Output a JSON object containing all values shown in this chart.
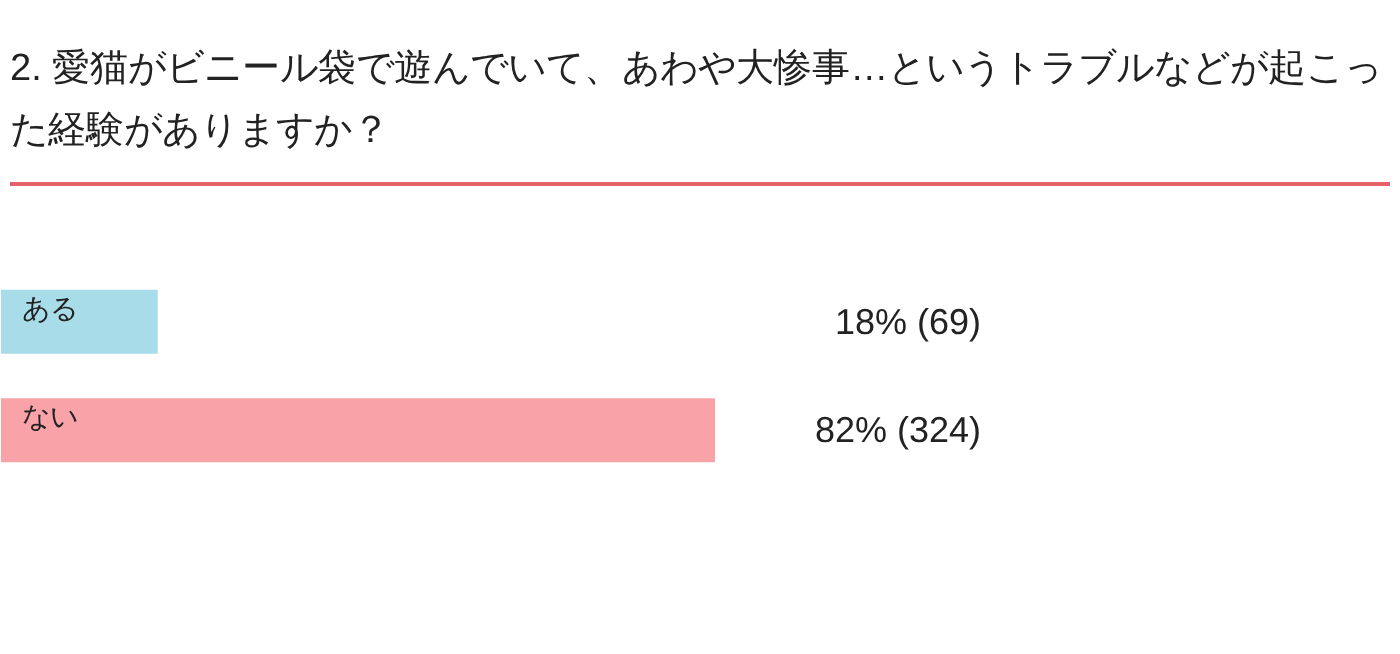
{
  "chart_data": {
    "type": "bar",
    "orientation": "horizontal",
    "title": "2. 愛猫がビニール袋で遊んでいて、あわや大惨事…というトラブルなどが起こった経験がありますか？",
    "categories": [
      "ある",
      "ない"
    ],
    "values": [
      18,
      82
    ],
    "colors": [
      "#a8dce8",
      "#f9a3a8"
    ],
    "value_labels": [
      "18% (69)",
      "82% (324)"
    ]
  }
}
